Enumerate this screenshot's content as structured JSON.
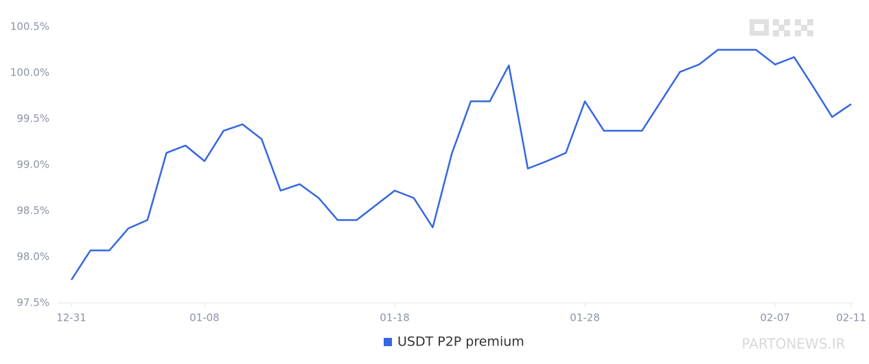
{
  "chart_data": {
    "type": "line",
    "categories": [
      "12-31",
      null,
      null,
      null,
      null,
      null,
      null,
      "01-08",
      null,
      null,
      null,
      null,
      null,
      null,
      null,
      null,
      null,
      "01-18",
      null,
      null,
      null,
      null,
      null,
      null,
      null,
      null,
      null,
      "01-28",
      null,
      null,
      null,
      null,
      null,
      null,
      null,
      null,
      null,
      "02-07",
      null,
      null,
      null,
      "02-11"
    ],
    "series": [
      {
        "name": "USDT P2P premium",
        "color": "#3366e0",
        "values": [
          97.75,
          98.07,
          98.07,
          98.31,
          98.4,
          99.13,
          99.21,
          99.04,
          99.37,
          99.44,
          99.28,
          98.72,
          98.79,
          98.64,
          98.4,
          98.4,
          98.56,
          98.72,
          98.64,
          98.32,
          99.12,
          99.69,
          99.69,
          100.08,
          98.96,
          99.04,
          99.13,
          99.69,
          99.37,
          99.37,
          99.37,
          99.69,
          100.01,
          100.09,
          100.25,
          100.25,
          100.25,
          100.09,
          100.17,
          99.85,
          99.52,
          99.66
        ]
      }
    ],
    "ylim": [
      97.5,
      100.5
    ],
    "yticks": [
      {
        "value": 97.5,
        "label": "97.5%"
      },
      {
        "value": 98,
        "label": "98.0%"
      },
      {
        "value": 98.5,
        "label": "98.5%"
      },
      {
        "value": 99,
        "label": "99.0%"
      },
      {
        "value": 99.5,
        "label": "99.5%"
      },
      {
        "value": 100,
        "label": "100.0%"
      },
      {
        "value": 100.5,
        "label": "100.5%"
      }
    ],
    "legend": "bottom",
    "watermark": "PARTONEWS.IR"
  }
}
